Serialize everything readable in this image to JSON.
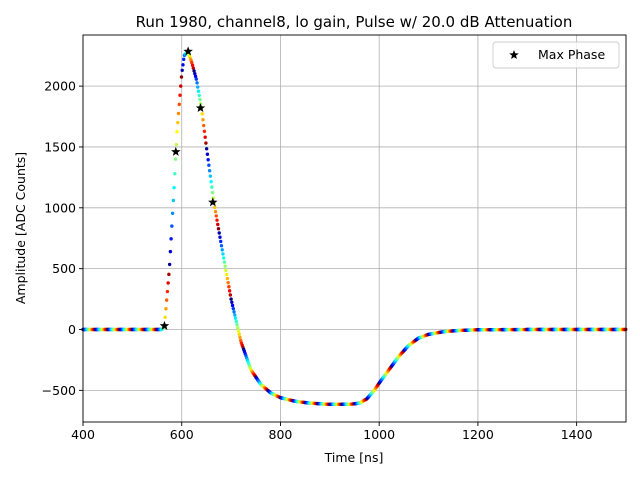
{
  "chart_data": {
    "type": "scatter",
    "title": "Run 1980, channel8, lo gain, Pulse w/ 20.0 dB Attenuation",
    "xlabel": "Time [ns]",
    "ylabel": "Amplitude [ADC Counts]",
    "xlim": [
      400,
      1500
    ],
    "ylim": [
      -760,
      2420
    ],
    "xticks": [
      400,
      600,
      800,
      1000,
      1200,
      1400
    ],
    "yticks": [
      -500,
      0,
      500,
      1000,
      1500,
      2000
    ],
    "ytick_labels": [
      "−500",
      "0",
      "500",
      "1000",
      "1500",
      "2000"
    ],
    "grid": true,
    "legend": {
      "position": "top-right",
      "entries": [
        "Max Phase"
      ]
    },
    "pulse_curve": {
      "x": [
        400,
        560,
        565,
        575,
        585,
        590,
        600,
        605,
        612,
        620,
        630,
        640,
        650,
        665,
        680,
        700,
        720,
        740,
        760,
        780,
        800,
        830,
        860,
        900,
        940,
        960,
        975,
        990,
        1000,
        1020,
        1040,
        1060,
        1080,
        1100,
        1130,
        1160,
        1200,
        1300,
        1500
      ],
      "y": [
        0,
        0,
        30,
        500,
        1200,
        1600,
        2100,
        2250,
        2285,
        2200,
        2050,
        1820,
        1500,
        1050,
        700,
        250,
        -100,
        -330,
        -450,
        -520,
        -560,
        -590,
        -605,
        -615,
        -615,
        -605,
        -570,
        -500,
        -440,
        -330,
        -220,
        -130,
        -70,
        -40,
        -18,
        -8,
        -2,
        0,
        0
      ]
    },
    "max_phase_points": {
      "name": "Max Phase",
      "x": [
        565,
        588,
        613,
        638,
        663
      ],
      "y": [
        30,
        1460,
        2285,
        1820,
        1045
      ]
    }
  }
}
